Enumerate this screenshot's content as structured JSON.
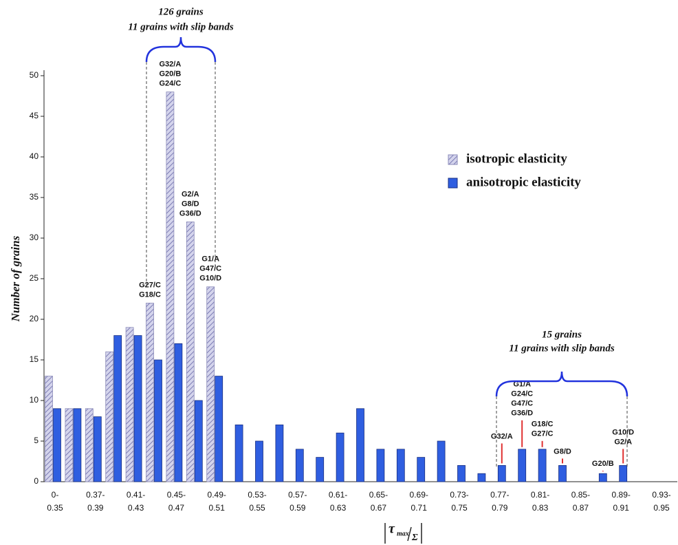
{
  "chart_data": {
    "type": "bar",
    "ylabel": "Number of grains",
    "xlabel": {
      "symbol": "τ",
      "subscript": "max",
      "denominator": "Σ"
    },
    "categories": [
      "0-\n0.35",
      null,
      "0.37-\n0.39",
      null,
      "0.41-\n0.43",
      null,
      "0.45-\n0.47",
      null,
      "0.49-\n0.51",
      null,
      "0.53-\n0.55",
      null,
      "0.57-\n0.59",
      null,
      "0.61-\n0.63",
      null,
      "0.65-\n0.67",
      null,
      "0.69-\n0.71",
      null,
      "0.73-\n0.75",
      null,
      "0.77-\n0.79",
      null,
      "0.81-\n0.83",
      null,
      "0.85-\n0.87",
      null,
      "0.89-\n0.91",
      null,
      "0.93-\n0.95"
    ],
    "series": [
      {
        "name": "isotropic elasticity",
        "color": "#d4d4ec",
        "hatch": true,
        "values": [
          13,
          9,
          9,
          16,
          19,
          22,
          48,
          32,
          24,
          0,
          0,
          0,
          0,
          0,
          0,
          0,
          0,
          0,
          0,
          0,
          0,
          0,
          0,
          0,
          0,
          0,
          0,
          0,
          0,
          0,
          0
        ]
      },
      {
        "name": "anisotropic elasticity",
        "color": "#2f5ee0",
        "hatch": false,
        "values": [
          9,
          9,
          8,
          18,
          18,
          15,
          17,
          10,
          13,
          7,
          5,
          7,
          4,
          3,
          6,
          9,
          4,
          4,
          3,
          5,
          2,
          1,
          2,
          4,
          4,
          2,
          0,
          1,
          2,
          0,
          0
        ]
      }
    ],
    "ylim": [
      0,
      50
    ],
    "yticks": [
      0,
      5,
      10,
      15,
      20,
      25,
      30,
      35,
      40,
      45,
      50
    ],
    "legend": "upper right",
    "annotations": [
      {
        "lines": [
          "G27/C",
          "G18/C"
        ]
      },
      {
        "lines": [
          "G32/A",
          "G20/B",
          "G24/C"
        ]
      },
      {
        "lines": [
          "G2/A",
          "G8/D",
          "G36/D"
        ]
      },
      {
        "lines": [
          "G1/A",
          "G47/C",
          "G10/D"
        ]
      },
      {
        "lines": [
          "G32/A"
        ]
      },
      {
        "lines": [
          "G1/A",
          "G24/C",
          "G47/C",
          "G36/D"
        ]
      },
      {
        "lines": [
          "G18/C",
          "G27/C"
        ]
      },
      {
        "lines": [
          "G8/D"
        ]
      },
      {
        "lines": [
          "G20/B"
        ]
      },
      {
        "lines": [
          "G10/D",
          "G2/A"
        ]
      }
    ],
    "brackets": [
      {
        "lines": [
          "126 grains",
          "11 grains with slip bands"
        ]
      },
      {
        "lines": [
          "15 grains",
          "11 grains with slip bands"
        ]
      }
    ]
  }
}
